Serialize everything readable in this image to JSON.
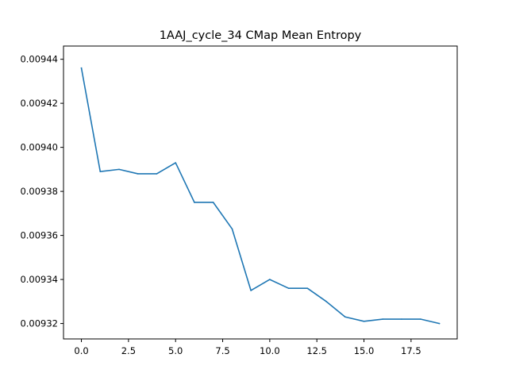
{
  "chart_data": {
    "type": "line",
    "title": "1AAJ_cycle_34 CMap Mean Entropy",
    "xlabel": "",
    "ylabel": "",
    "xlim": [
      -0.95,
      19.95
    ],
    "ylim": [
      0.009313,
      0.009446
    ],
    "x_ticks": [
      0.0,
      2.5,
      5.0,
      7.5,
      10.0,
      12.5,
      15.0,
      17.5
    ],
    "x_tick_labels": [
      "0.0",
      "2.5",
      "5.0",
      "7.5",
      "10.0",
      "12.5",
      "15.0",
      "17.5"
    ],
    "y_ticks": [
      0.00932,
      0.00934,
      0.00936,
      0.00938,
      0.0094,
      0.00942,
      0.00944
    ],
    "y_tick_labels": [
      "0.00932",
      "0.00934",
      "0.00936",
      "0.00938",
      "0.00940",
      "0.00942",
      "0.00944"
    ],
    "grid": false,
    "legend": "none",
    "series": [
      {
        "color": "#1f77b4",
        "x": [
          0,
          1,
          2,
          3,
          4,
          5,
          6,
          7,
          8,
          9,
          10,
          11,
          12,
          13,
          14,
          15,
          16,
          17,
          18,
          19
        ],
        "y": [
          0.009436,
          0.009389,
          0.00939,
          0.009388,
          0.009388,
          0.009393,
          0.009375,
          0.009375,
          0.009363,
          0.009335,
          0.00934,
          0.009336,
          0.009336,
          0.00933,
          0.009323,
          0.009321,
          0.009322,
          0.009322,
          0.009322,
          0.00932
        ]
      }
    ]
  }
}
